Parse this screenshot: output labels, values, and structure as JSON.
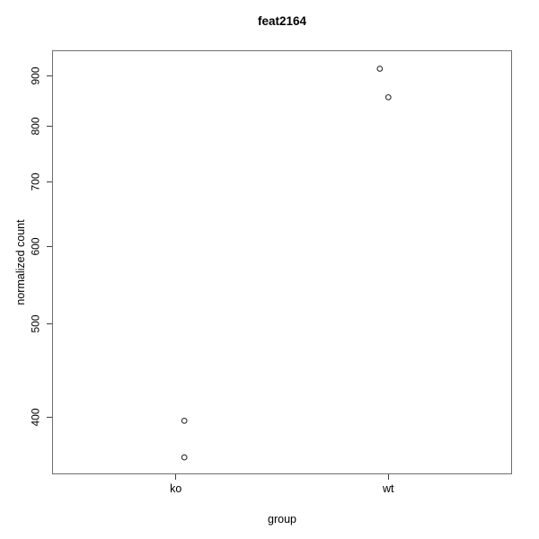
{
  "chart_data": {
    "type": "scatter",
    "title": "feat2164",
    "xlabel": "group",
    "ylabel": "normalized count",
    "categories": [
      "ko",
      "wt"
    ],
    "x_category_positions": [
      1,
      2
    ],
    "xlim": [
      0.42,
      2.58
    ],
    "ylim": [
      350,
      956
    ],
    "y_scale": "log10",
    "y_ticks": [
      400,
      500,
      600,
      700,
      800,
      900
    ],
    "series": [
      {
        "name": "ko",
        "points": [
          {
            "x": 1.04,
            "y": 397
          },
          {
            "x": 1.04,
            "y": 364
          }
        ]
      },
      {
        "name": "wt",
        "points": [
          {
            "x": 1.96,
            "y": 916
          },
          {
            "x": 2.0,
            "y": 856
          }
        ]
      }
    ],
    "point_style": {
      "shape": "open-circle",
      "radius": 2.8,
      "stroke": "#2e2e2e"
    },
    "colors": {
      "box": "#6f6f6f",
      "tick": "#3f3f3f",
      "text": "#000000",
      "background": "#ffffff"
    },
    "legend": "none",
    "grid": false
  }
}
